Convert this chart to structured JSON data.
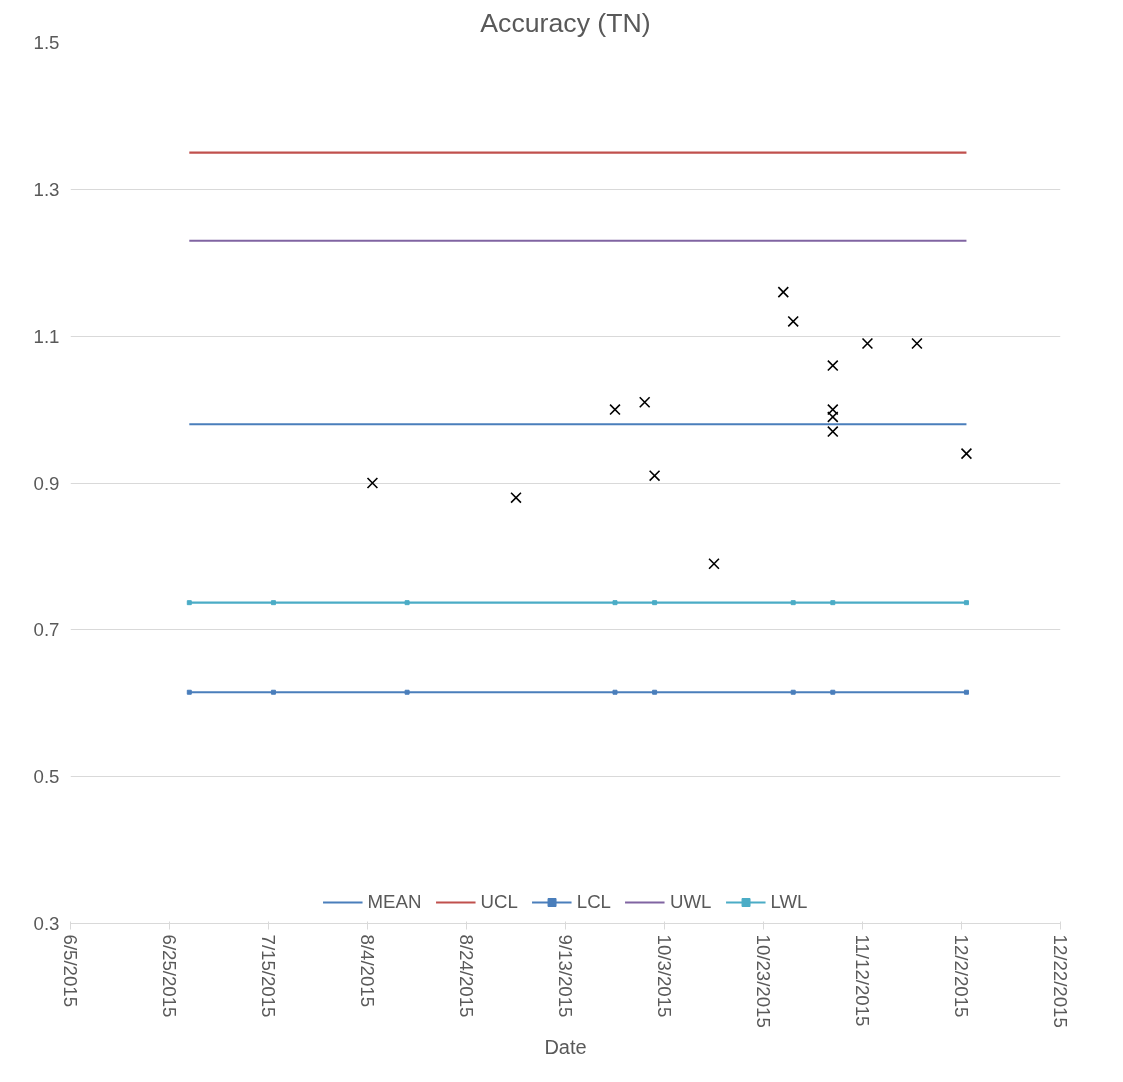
{
  "chart_data": {
    "type": "line",
    "title": "Accuracy (TN)",
    "xlabel": "Date",
    "xlim": [
      "2015-06-05",
      "2015-12-22"
    ],
    "xticks": [
      {
        "value": "2015-06-05",
        "label": "6/5/2015"
      },
      {
        "value": "2015-06-25",
        "label": "6/25/2015"
      },
      {
        "value": "2015-07-15",
        "label": "7/15/2015"
      },
      {
        "value": "2015-08-04",
        "label": "8/4/2015"
      },
      {
        "value": "2015-08-24",
        "label": "8/24/2015"
      },
      {
        "value": "2015-09-13",
        "label": "9/13/2015"
      },
      {
        "value": "2015-10-03",
        "label": "10/3/2015"
      },
      {
        "value": "2015-10-23",
        "label": "10/23/2015"
      },
      {
        "value": "2015-11-12",
        "label": "11/12/2015"
      },
      {
        "value": "2015-12-02",
        "label": "12/2/2015"
      },
      {
        "value": "2015-12-22",
        "label": "12/22/2015"
      }
    ],
    "ylim": [
      0.3,
      1.5
    ],
    "yticks": [
      0.3,
      0.5,
      0.7,
      0.9,
      1.1,
      1.3,
      1.5
    ],
    "grid": "y",
    "legend": "bottom",
    "series": [
      {
        "type": "scatter",
        "color": "#000000",
        "marker": "cross",
        "x": [
          "2015-08-05",
          "2015-09-03",
          "2015-09-23",
          "2015-09-29",
          "2015-10-01",
          "2015-10-13",
          "2015-10-27",
          "2015-10-29",
          "2015-11-06",
          "2015-11-06",
          "2015-11-06",
          "2015-11-06",
          "2015-11-13",
          "2015-11-23",
          "2015-12-03"
        ],
        "values": [
          0.9,
          0.88,
          1.0,
          1.01,
          0.91,
          0.79,
          1.16,
          1.12,
          1.06,
          1.0,
          0.99,
          0.97,
          1.09,
          1.09,
          0.94
        ]
      },
      {
        "name": "MEAN",
        "color": "#4a7ebb",
        "marker": "none",
        "x": [
          "2015-06-29",
          "2015-12-03"
        ],
        "values": [
          0.98,
          0.98
        ]
      },
      {
        "name": "UCL",
        "color": "#c0504d",
        "marker": "none",
        "x": [
          "2015-06-29",
          "2015-12-03"
        ],
        "values": [
          1.35,
          1.35
        ]
      },
      {
        "name": "LCL",
        "color": "#4a7ebb",
        "marker": "square",
        "x": [
          "2015-06-29",
          "2015-07-16",
          "2015-08-12",
          "2015-09-23",
          "2015-10-01",
          "2015-10-29",
          "2015-11-06",
          "2015-12-03"
        ],
        "values": [
          0.615,
          0.615,
          0.615,
          0.615,
          0.615,
          0.615,
          0.615,
          0.615
        ]
      },
      {
        "name": "UWL",
        "color": "#8064a2",
        "marker": "none",
        "x": [
          "2015-06-29",
          "2015-12-03"
        ],
        "values": [
          1.23,
          1.23
        ]
      },
      {
        "name": "LWL",
        "color": "#4bacc6",
        "marker": "square",
        "x": [
          "2015-06-29",
          "2015-07-16",
          "2015-08-12",
          "2015-09-23",
          "2015-10-01",
          "2015-10-29",
          "2015-11-06",
          "2015-12-03"
        ],
        "values": [
          0.737,
          0.737,
          0.737,
          0.737,
          0.737,
          0.737,
          0.737,
          0.737
        ]
      }
    ]
  }
}
